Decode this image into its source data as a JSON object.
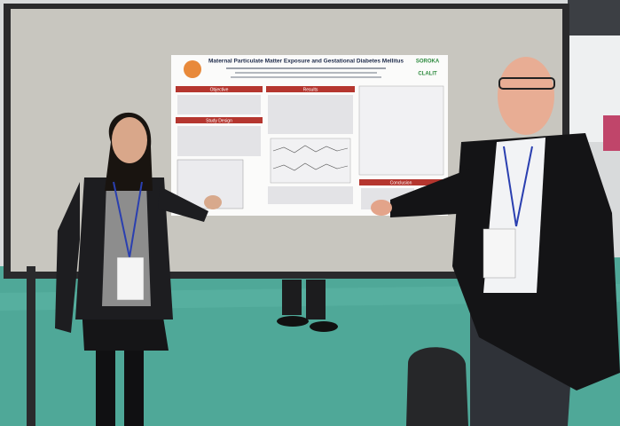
{
  "poster": {
    "title": "Maternal Particulate Matter Exposure and Gestational Diabetes Mellitus",
    "sections": [
      "Objective",
      "Study Design",
      "Results",
      "Conclusion"
    ],
    "logos": [
      "SOROKA",
      "CLALIT"
    ]
  }
}
